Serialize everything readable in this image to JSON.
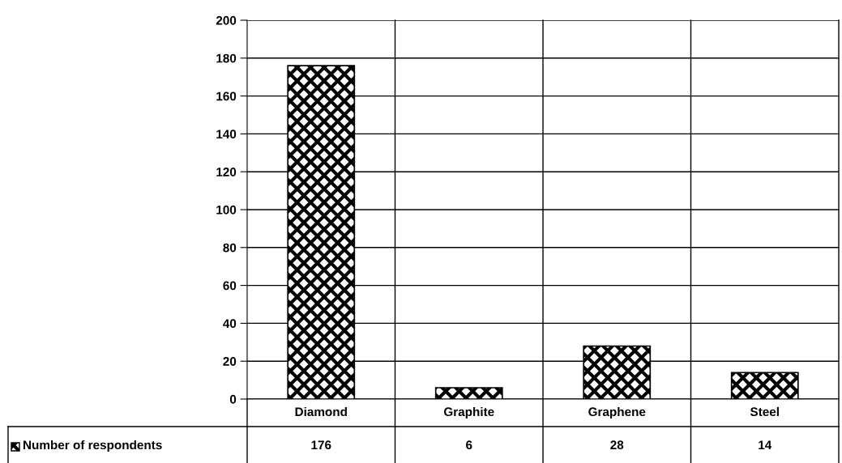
{
  "chart_data": {
    "type": "bar",
    "categories": [
      "Diamond",
      "Graphite",
      "Graphene",
      "Steel"
    ],
    "series": [
      {
        "name": "Number of respondents",
        "color": "#000000",
        "values": [
          176,
          6,
          28,
          14
        ]
      }
    ],
    "ylim": [
      0,
      200
    ],
    "yticks": [
      0,
      20,
      40,
      60,
      80,
      100,
      120,
      140,
      160,
      180,
      200
    ],
    "grid": "y",
    "data_labels": true,
    "legend": "bottom left"
  }
}
